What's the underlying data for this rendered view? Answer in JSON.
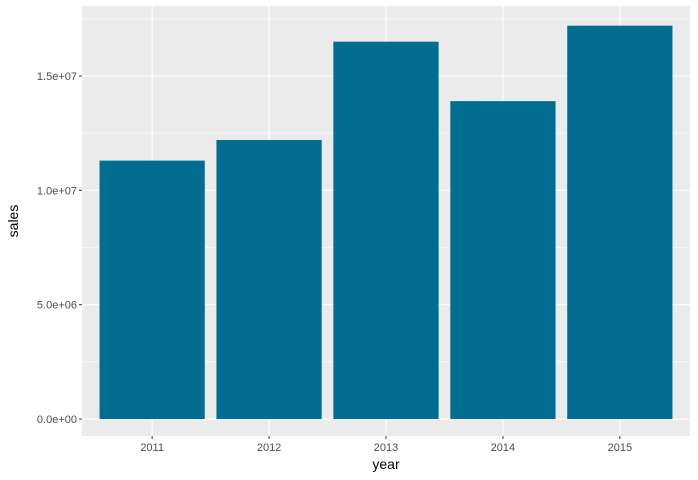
{
  "chart_data": {
    "type": "bar",
    "title": "",
    "xlabel": "year",
    "ylabel": "sales",
    "categories": [
      "2011",
      "2012",
      "2013",
      "2014",
      "2015"
    ],
    "values": [
      11300000,
      12200000,
      16500000,
      13900000,
      17200000
    ],
    "ylim": [
      0,
      18000000
    ],
    "y_ticks": [
      0,
      5000000,
      10000000,
      15000000
    ],
    "y_tick_labels": [
      "0.0e+00",
      "5.0e+06",
      "1.0e+07",
      "1.5e+07"
    ],
    "grid": true,
    "legend": "none",
    "colors": {
      "bar": "#006d91",
      "panel_background": "#ebebeb",
      "grid_major": "#ffffff",
      "tick_text": "#4d4d4d",
      "tick_mark": "#333333"
    }
  }
}
